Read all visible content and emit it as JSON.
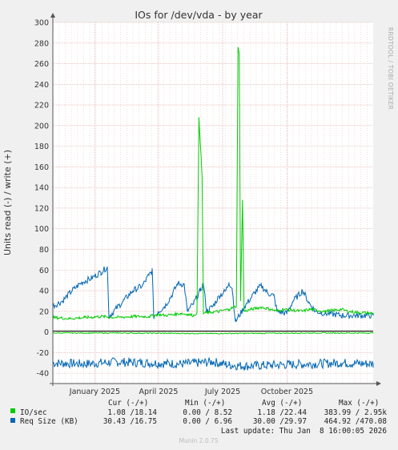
{
  "chart_data": {
    "type": "line",
    "title": "IOs for /dev/vda - by year",
    "ylabel": "Units read (-) / write (+)",
    "side_label": "RRDTOOL / TOBI OETIKER",
    "ylim": [
      -50,
      300
    ],
    "yticks": [
      300,
      280,
      260,
      240,
      220,
      200,
      180,
      160,
      140,
      120,
      100,
      80,
      60,
      40,
      20,
      0,
      -20,
      -40
    ],
    "xticks": [
      {
        "label": "January 2025",
        "pos": 0.131
      },
      {
        "label": "April 2025",
        "pos": 0.33
      },
      {
        "label": "July 2025",
        "pos": 0.53
      },
      {
        "label": "October 2025",
        "pos": 0.731
      }
    ],
    "grid": true,
    "series": [
      {
        "name": "IO/sec",
        "color": "#00cc00",
        "write_points": [
          [
            0,
            14
          ],
          [
            0.05,
            13
          ],
          [
            0.1,
            14
          ],
          [
            0.15,
            15
          ],
          [
            0.2,
            14
          ],
          [
            0.25,
            15
          ],
          [
            0.3,
            15
          ],
          [
            0.33,
            17
          ],
          [
            0.35,
            16
          ],
          [
            0.38,
            17
          ],
          [
            0.4,
            18
          ],
          [
            0.42,
            17
          ],
          [
            0.44,
            16
          ],
          [
            0.45,
            19
          ],
          [
            0.456,
            208
          ],
          [
            0.462,
            174
          ],
          [
            0.466,
            150
          ],
          [
            0.47,
            18
          ],
          [
            0.49,
            19
          ],
          [
            0.52,
            20
          ],
          [
            0.55,
            22
          ],
          [
            0.573,
            25
          ],
          [
            0.578,
            276
          ],
          [
            0.582,
            270
          ],
          [
            0.586,
            30
          ],
          [
            0.592,
            128
          ],
          [
            0.597,
            20
          ],
          [
            0.62,
            22
          ],
          [
            0.65,
            24
          ],
          [
            0.68,
            22
          ],
          [
            0.7,
            20
          ],
          [
            0.72,
            22
          ],
          [
            0.75,
            21
          ],
          [
            0.78,
            20
          ],
          [
            0.8,
            22
          ],
          [
            0.85,
            20
          ],
          [
            0.88,
            21
          ],
          [
            0.9,
            22
          ],
          [
            0.92,
            20
          ],
          [
            0.95,
            19
          ],
          [
            1,
            18
          ]
        ],
        "read_points": [
          [
            0,
            -1
          ],
          [
            0.2,
            -1
          ],
          [
            0.5,
            -1.5
          ],
          [
            0.8,
            -1
          ],
          [
            1,
            -1
          ]
        ]
      },
      {
        "name": "Req Size (KB)",
        "color": "#0066b3",
        "write_points": [
          [
            0,
            25
          ],
          [
            0.03,
            30
          ],
          [
            0.06,
            40
          ],
          [
            0.09,
            48
          ],
          [
            0.12,
            52
          ],
          [
            0.15,
            58
          ],
          [
            0.17,
            63
          ],
          [
            0.175,
            15
          ],
          [
            0.19,
            20
          ],
          [
            0.22,
            30
          ],
          [
            0.25,
            40
          ],
          [
            0.28,
            45
          ],
          [
            0.3,
            55
          ],
          [
            0.31,
            60
          ],
          [
            0.315,
            15
          ],
          [
            0.33,
            20
          ],
          [
            0.35,
            25
          ],
          [
            0.37,
            35
          ],
          [
            0.39,
            47
          ],
          [
            0.41,
            46
          ],
          [
            0.42,
            20
          ],
          [
            0.44,
            28
          ],
          [
            0.46,
            40
          ],
          [
            0.47,
            47
          ],
          [
            0.48,
            20
          ],
          [
            0.5,
            25
          ],
          [
            0.52,
            35
          ],
          [
            0.54,
            40
          ],
          [
            0.55,
            48
          ],
          [
            0.56,
            42
          ],
          [
            0.57,
            10
          ],
          [
            0.6,
            25
          ],
          [
            0.63,
            38
          ],
          [
            0.65,
            45
          ],
          [
            0.67,
            38
          ],
          [
            0.69,
            35
          ],
          [
            0.7,
            20
          ],
          [
            0.73,
            18
          ],
          [
            0.75,
            30
          ],
          [
            0.78,
            40
          ],
          [
            0.8,
            28
          ],
          [
            0.82,
            20
          ],
          [
            0.85,
            18
          ],
          [
            0.88,
            17
          ],
          [
            0.9,
            16
          ],
          [
            0.95,
            16
          ],
          [
            1,
            16
          ]
        ],
        "read_points": [
          [
            0,
            -30
          ],
          [
            0.1,
            -31
          ],
          [
            0.2,
            -29
          ],
          [
            0.3,
            -30
          ],
          [
            0.4,
            -31
          ],
          [
            0.5,
            -29
          ],
          [
            0.55,
            -32
          ],
          [
            0.6,
            -33
          ],
          [
            0.7,
            -32
          ],
          [
            0.8,
            -31
          ],
          [
            0.9,
            -30
          ],
          [
            1,
            -31
          ]
        ]
      }
    ],
    "legend": {
      "headers": [
        "Cur (-/+)",
        "Min (-/+)",
        "Avg (-/+)",
        "Max (-/+)"
      ],
      "rows": [
        {
          "name": "IO/sec",
          "color": "#00cc00",
          "cur": "1.08 /18.14",
          "min": "0.00 / 8.52",
          "avg": "1.18 /22.44",
          "max": "383.99 / 2.95k"
        },
        {
          "name": "Req Size (KB)",
          "color": "#0066b3",
          "cur": "30.43 /16.75",
          "min": "0.00 / 6.96",
          "avg": "30.00 /29.97",
          "max": "464.92 /470.08"
        }
      ]
    },
    "last_update": "Last update: Thu Jan  8 16:00:05 2026",
    "footer": "Munin 2.0.75"
  }
}
